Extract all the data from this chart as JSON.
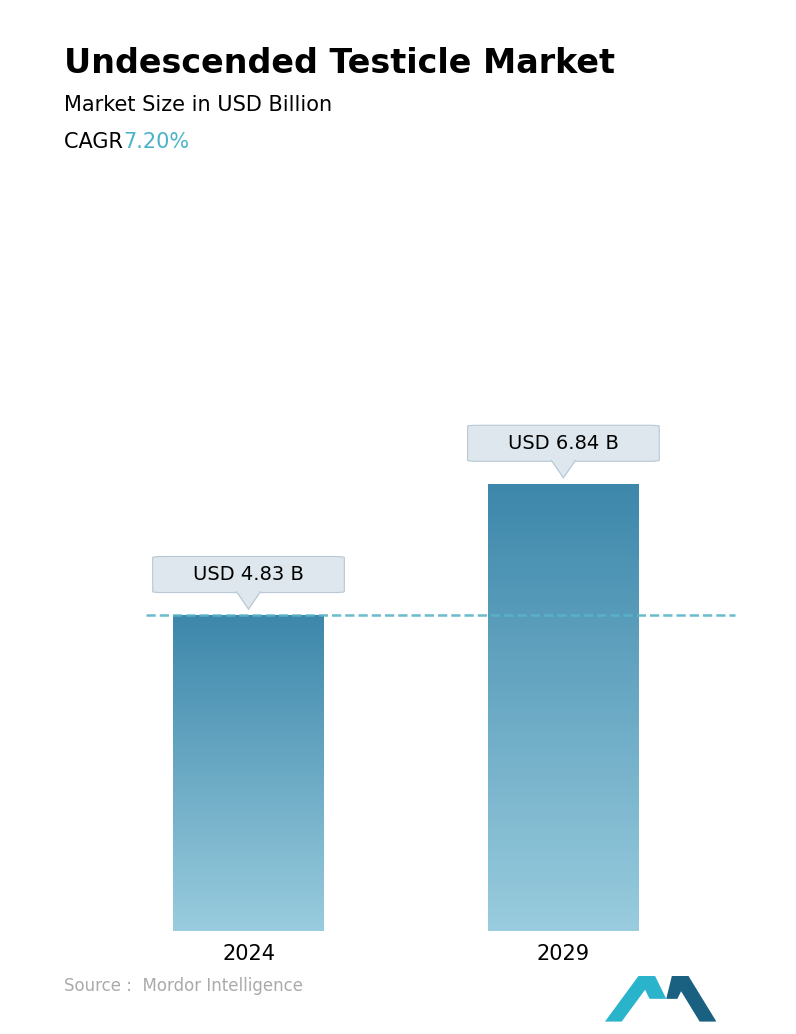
{
  "title": "Undescended Testicle Market",
  "subtitle": "Market Size in USD Billion",
  "cagr_label": "CAGR",
  "cagr_value": "7.20%",
  "cagr_color": "#4ab3c8",
  "categories": [
    "2024",
    "2029"
  ],
  "values": [
    4.83,
    6.84
  ],
  "bar_labels": [
    "USD 4.83 B",
    "USD 6.84 B"
  ],
  "bar_color_top": "#3d7fa0",
  "bar_color_bottom": "#94ccd8",
  "dashed_line_color": "#5ab4c8",
  "source_text": "Source :  Mordor Intelligence",
  "source_color": "#aaaaaa",
  "bg_color": "#ffffff",
  "title_fontsize": 24,
  "subtitle_fontsize": 15,
  "cagr_fontsize": 15,
  "tick_fontsize": 15,
  "label_fontsize": 14,
  "source_fontsize": 12,
  "ylim": [
    0,
    9.5
  ],
  "bar_width": 0.22,
  "x_positions": [
    0.27,
    0.73
  ]
}
